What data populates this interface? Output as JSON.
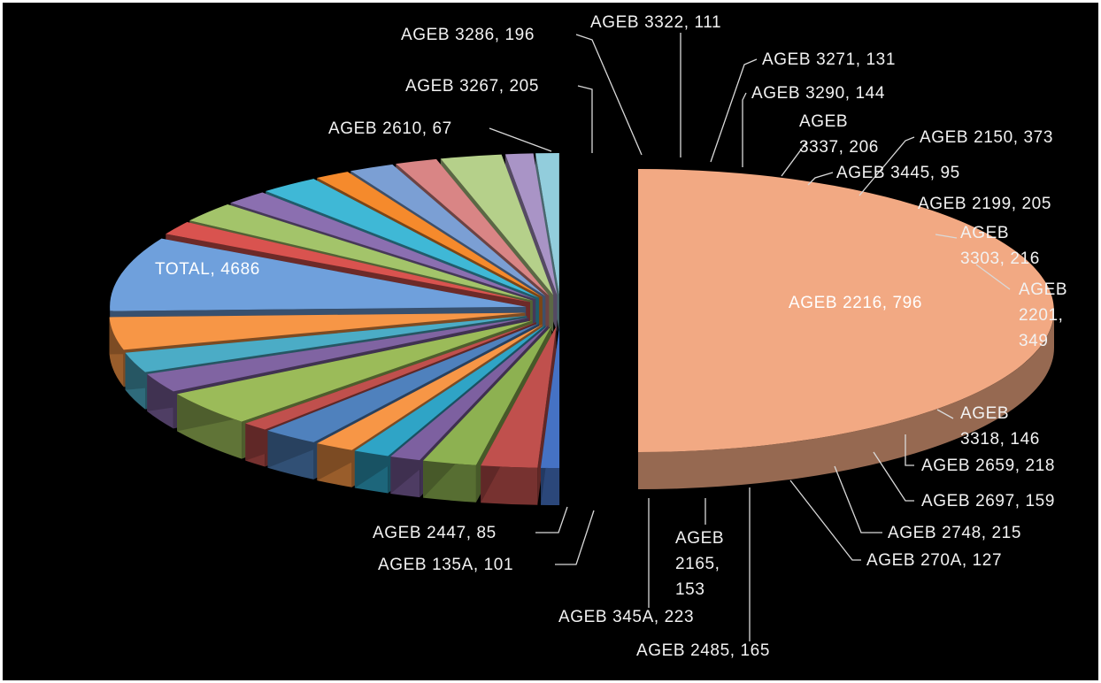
{
  "chart_data": {
    "type": "pie",
    "exploded": true,
    "three_d": true,
    "title": "",
    "background": "#000000",
    "slices": [
      {
        "label": "TOTAL",
        "value": 4686,
        "color": "#f2a983"
      },
      {
        "label": "AGEB 2610",
        "value": 67,
        "color": "#4572c4"
      },
      {
        "label": "AGEB 3267",
        "value": 205,
        "color": "#c0504d"
      },
      {
        "label": "AGEB 3286",
        "value": 196,
        "color": "#8db151"
      },
      {
        "label": "AGEB 3322",
        "value": 111,
        "color": "#7d60a0"
      },
      {
        "label": "AGEB 3271",
        "value": 131,
        "color": "#2fa4c6"
      },
      {
        "label": "AGEB 3290",
        "value": 144,
        "color": "#f79646"
      },
      {
        "label": "AGEB 3337",
        "value": 206,
        "color": "#4f81bd"
      },
      {
        "label": "AGEB 3445",
        "value": 95,
        "color": "#c0504d"
      },
      {
        "label": "AGEB 2150",
        "value": 373,
        "color": "#9bbb59"
      },
      {
        "label": "AGEB 2199",
        "value": 205,
        "color": "#8064a2"
      },
      {
        "label": "AGEB 3303",
        "value": 216,
        "color": "#4bacc6"
      },
      {
        "label": "AGEB 2201",
        "value": 349,
        "color": "#f79646"
      },
      {
        "label": "AGEB 2216",
        "value": 796,
        "color": "#6fa0dc"
      },
      {
        "label": "AGEB 3318",
        "value": 146,
        "color": "#d9534f"
      },
      {
        "label": "AGEB 2659",
        "value": 218,
        "color": "#a3c46a"
      },
      {
        "label": "AGEB 2697",
        "value": 159,
        "color": "#8b6fb0"
      },
      {
        "label": "AGEB 2748",
        "value": 215,
        "color": "#3fb8d6"
      },
      {
        "label": "AGEB 270A",
        "value": 127,
        "color": "#f58a2c"
      },
      {
        "label": "AGEB 2485",
        "value": 165,
        "color": "#7b9fd4"
      },
      {
        "label": "AGEB 2165",
        "value": 153,
        "color": "#d98585"
      },
      {
        "label": "AGEB 345A",
        "value": 223,
        "color": "#b5d08a"
      },
      {
        "label": "AGEB 135A",
        "value": 101,
        "color": "#a994c6"
      },
      {
        "label": "AGEB 2447",
        "value": 85,
        "color": "#92cddc"
      }
    ]
  }
}
